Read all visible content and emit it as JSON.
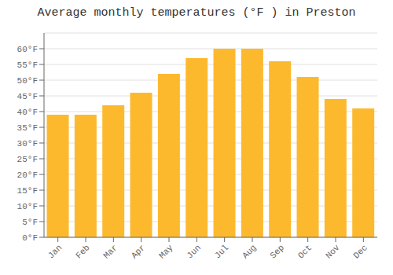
{
  "chart_data": {
    "type": "bar",
    "title": "Average monthly temperatures (°F ) in Preston",
    "categories": [
      "Jan",
      "Feb",
      "Mar",
      "Apr",
      "May",
      "Jun",
      "Jul",
      "Aug",
      "Sep",
      "Oct",
      "Nov",
      "Dec"
    ],
    "values": [
      39,
      39,
      42,
      46,
      52,
      57,
      60,
      60,
      56,
      51,
      44,
      41
    ],
    "color": "#FDB92E",
    "ylim": [
      0,
      65
    ],
    "yticks": [
      {
        "value": 0,
        "label": "0°F"
      },
      {
        "value": 5,
        "label": "5°F"
      },
      {
        "value": 10,
        "label": "10°F"
      },
      {
        "value": 15,
        "label": "15°F"
      },
      {
        "value": 20,
        "label": "20°F"
      },
      {
        "value": 25,
        "label": "25°F"
      },
      {
        "value": 30,
        "label": "30°F"
      },
      {
        "value": 35,
        "label": "35°F"
      },
      {
        "value": 40,
        "label": "40°F"
      },
      {
        "value": 45,
        "label": "45°F"
      },
      {
        "value": 50,
        "label": "50°F"
      },
      {
        "value": 55,
        "label": "55°F"
      },
      {
        "value": 60,
        "label": "60°F"
      }
    ],
    "grid": true
  }
}
